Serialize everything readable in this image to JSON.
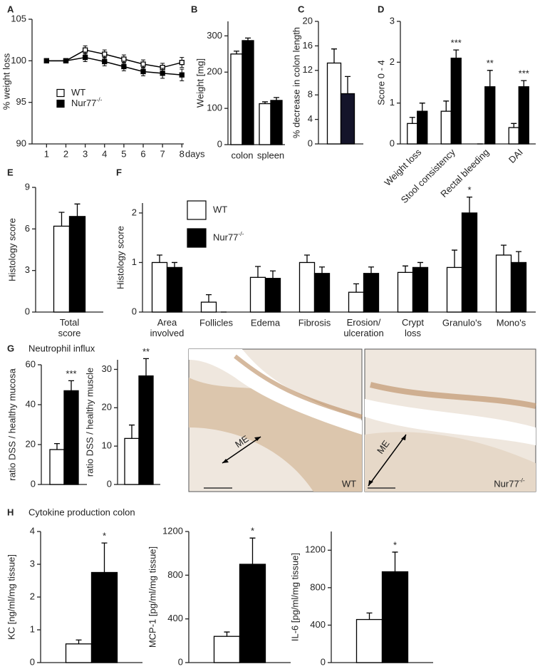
{
  "chart_data": [
    {
      "type": "line",
      "panel": "A",
      "ylabel": "% weight loss",
      "xlabel": "days",
      "x": [
        1,
        2,
        3,
        4,
        5,
        6,
        7,
        8
      ],
      "xlim": [
        0.25,
        8.1
      ],
      "xticks": [
        1,
        2,
        3,
        4,
        5,
        6,
        7,
        8
      ],
      "ylim": [
        90,
        105
      ],
      "yticks": [
        90,
        95,
        100,
        105
      ],
      "legend": "center-left",
      "series": [
        {
          "name": "WT",
          "color": "#ffffff",
          "values": [
            100,
            100,
            101.3,
            100.8,
            100.2,
            99.6,
            99.2,
            99.8
          ],
          "errors": [
            0,
            0,
            0.5,
            0.5,
            0.5,
            0.5,
            0.5,
            0.6
          ]
        },
        {
          "name": "Nur77-/-",
          "color": "#000000",
          "values": [
            100,
            100,
            100.4,
            99.9,
            99.3,
            98.7,
            98.5,
            98.3
          ],
          "errors": [
            0,
            0,
            0.5,
            0.5,
            0.5,
            0.5,
            0.6,
            0.7
          ]
        }
      ]
    },
    {
      "type": "bar",
      "panel": "B",
      "ylabel": "Weight [mg]",
      "categories": [
        "colon",
        "spleen"
      ],
      "ylim": [
        0,
        340
      ],
      "yticks": [
        0,
        100,
        200,
        300
      ],
      "series": [
        {
          "color": "#ffffff",
          "values": [
            250,
            113
          ],
          "errors": [
            8,
            5
          ]
        },
        {
          "color": "#000000",
          "values": [
            287,
            122
          ],
          "errors": [
            7,
            8
          ]
        }
      ]
    },
    {
      "type": "bar",
      "panel": "C",
      "ylabel": "% decrease in colon length",
      "categories": [
        null
      ],
      "ylim": [
        0,
        20
      ],
      "yticks": [
        0,
        4,
        8,
        12,
        16,
        20
      ],
      "series": [
        {
          "color": "#ffffff",
          "values": [
            13.2
          ],
          "errors": [
            2.3
          ]
        },
        {
          "color": "#14142a",
          "values": [
            8.2
          ],
          "errors": [
            2.8
          ]
        }
      ]
    },
    {
      "type": "bar",
      "panel": "D",
      "ylabel": "Score 0 - 4",
      "categories": [
        "Weight loss",
        "Stool consistency",
        "Rectal bleeding",
        "DAI"
      ],
      "ylim": [
        0,
        3
      ],
      "yticks": [
        0,
        1,
        2,
        3
      ],
      "significance": [
        null,
        "***",
        "**",
        "***"
      ],
      "series": [
        {
          "color": "#ffffff",
          "values": [
            0.5,
            0.8,
            0,
            0.4
          ],
          "errors": [
            0.15,
            0.25,
            0,
            0.1
          ]
        },
        {
          "color": "#000000",
          "values": [
            0.8,
            2.1,
            1.4,
            1.4
          ],
          "errors": [
            0.2,
            0.2,
            0.4,
            0.15
          ]
        }
      ]
    },
    {
      "type": "bar",
      "panel": "E",
      "ylabel": "Histology score",
      "categories": [
        "Total score"
      ],
      "ylim": [
        0,
        9
      ],
      "yticks": [
        0,
        3,
        6,
        9
      ],
      "series": [
        {
          "color": "#ffffff",
          "values": [
            6.2
          ],
          "errors": [
            1.0
          ]
        },
        {
          "color": "#000000",
          "values": [
            6.9
          ],
          "errors": [
            0.9
          ]
        }
      ]
    },
    {
      "type": "bar",
      "panel": "F",
      "ylabel": "Histology score",
      "legend": "upper-left",
      "categories": [
        "Area involved",
        "Follicles",
        "Edema",
        "Fibrosis",
        "Erosion/ ulceration",
        "Crypt loss",
        "Granulo's",
        "Mono's"
      ],
      "ylim": [
        0,
        2.2
      ],
      "yticks": [
        0,
        1,
        2
      ],
      "significance": [
        null,
        null,
        null,
        null,
        null,
        null,
        "*",
        null
      ],
      "series": [
        {
          "name": "WT",
          "color": "#ffffff",
          "values": [
            1.0,
            0.2,
            0.7,
            1.0,
            0.4,
            0.8,
            0.9,
            1.15
          ],
          "errors": [
            0.15,
            0.15,
            0.22,
            0.15,
            0.17,
            0.13,
            0.35,
            0.2
          ]
        },
        {
          "name": "Nur77-/-",
          "color": "#000000",
          "values": [
            0.9,
            0,
            0.68,
            0.78,
            0.78,
            0.9,
            2.0,
            1.0
          ],
          "errors": [
            0.1,
            0,
            0.15,
            0.13,
            0.13,
            0.1,
            0.32,
            0.22
          ]
        }
      ]
    },
    {
      "type": "bar",
      "panel": "G",
      "group_title": "Neutrophil influx",
      "ylabel": "ratio DSS / healthy mucosa",
      "categories": [
        null
      ],
      "ylim": [
        0,
        60
      ],
      "yticks": [
        0,
        20,
        40,
        60
      ],
      "significance": [
        "***"
      ],
      "series": [
        {
          "color": "#ffffff",
          "values": [
            17.5
          ],
          "errors": [
            3
          ]
        },
        {
          "color": "#000000",
          "values": [
            47
          ],
          "errors": [
            5
          ]
        }
      ]
    },
    {
      "type": "bar",
      "ylabel": "ratio DSS / healthy muscle",
      "categories": [
        null
      ],
      "ylim": [
        0,
        32.5
      ],
      "yticks": [
        0,
        10,
        20,
        30
      ],
      "significance": [
        "**"
      ],
      "series": [
        {
          "color": "#ffffff",
          "values": [
            12
          ],
          "errors": [
            3.5
          ]
        },
        {
          "color": "#000000",
          "values": [
            28.3
          ],
          "errors": [
            4.5
          ]
        }
      ]
    },
    {
      "type": "bar",
      "panel": "H",
      "group_title": "Cytokine production colon",
      "ylabel": "KC [ng/ml/mg tissue]",
      "categories": [
        null
      ],
      "ylim": [
        0,
        4
      ],
      "yticks": [
        0,
        1,
        2,
        3,
        4
      ],
      "significance": [
        "*"
      ],
      "series": [
        {
          "color": "#ffffff",
          "values": [
            0.57
          ],
          "errors": [
            0.12
          ]
        },
        {
          "color": "#000000",
          "values": [
            2.75
          ],
          "errors": [
            0.9
          ]
        }
      ]
    },
    {
      "type": "bar",
      "ylabel": "MCP-1 [pg/ml/mg tissue]",
      "categories": [
        null
      ],
      "ylim": [
        0,
        1200
      ],
      "yticks": [
        0,
        400,
        800,
        1200
      ],
      "significance": [
        "*"
      ],
      "series": [
        {
          "color": "#ffffff",
          "values": [
            240
          ],
          "errors": [
            40
          ]
        },
        {
          "color": "#000000",
          "values": [
            900
          ],
          "errors": [
            240
          ]
        }
      ]
    },
    {
      "type": "bar",
      "ylabel": "IL-6 [pg/ml/mg tissue]",
      "categories": [
        null
      ],
      "ylim": [
        0,
        1400
      ],
      "yticks": [
        0,
        400,
        800,
        1200
      ],
      "significance": [
        "*"
      ],
      "series": [
        {
          "color": "#ffffff",
          "values": [
            460
          ],
          "errors": [
            70
          ]
        },
        {
          "color": "#000000",
          "values": [
            970
          ],
          "errors": [
            210
          ]
        }
      ]
    }
  ],
  "micrographs": [
    {
      "label": "WT",
      "arrow_label": "ME"
    },
    {
      "label": "Nur77-/-",
      "arrow_label": "ME"
    }
  ]
}
